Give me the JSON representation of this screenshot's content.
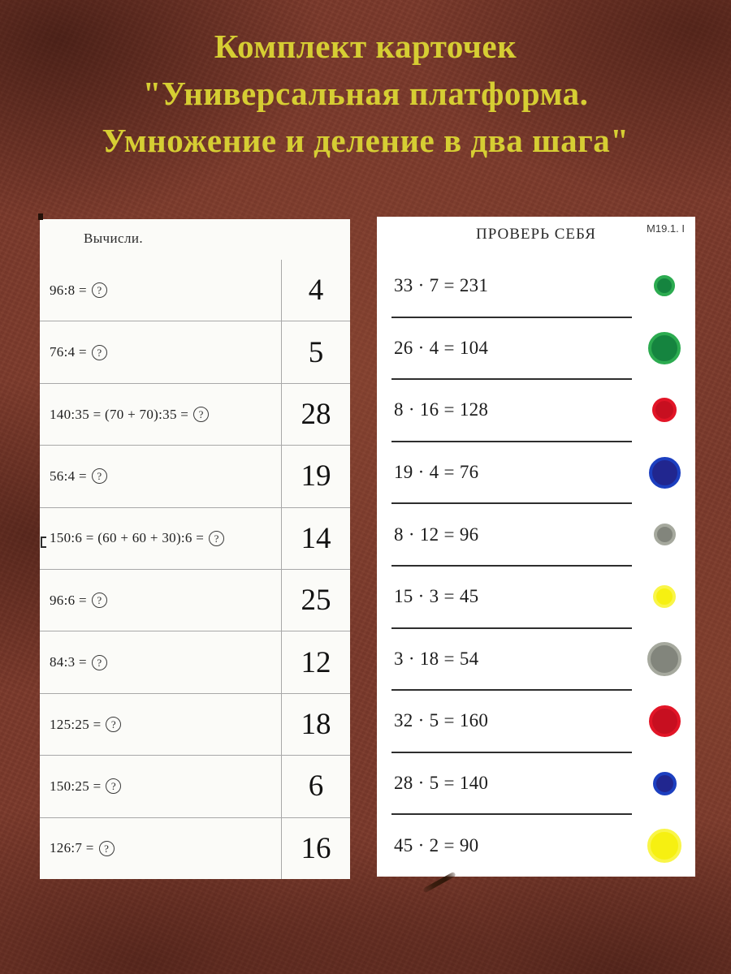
{
  "poster": {
    "title_lines": [
      "Комплект карточек",
      "\"Универсальная платформа.",
      "Умножение и деление в два шага\""
    ]
  },
  "left_card": {
    "header": "Вычисли.",
    "qmark": "?",
    "rows": [
      {
        "expr": "96:8 =",
        "answer": "4"
      },
      {
        "expr": "76:4 =",
        "answer": "5"
      },
      {
        "expr": "140:35 = (70 + 70):35 =",
        "answer": "28"
      },
      {
        "expr": "56:4 =",
        "answer": "19"
      },
      {
        "expr": "150:6 = (60 + 60 + 30):6 =",
        "answer": "14"
      },
      {
        "expr": "96:6 =",
        "answer": "25"
      },
      {
        "expr": "84:3 =",
        "answer": "12"
      },
      {
        "expr": "125:25 =",
        "answer": "18"
      },
      {
        "expr": "150:25 =",
        "answer": "6"
      },
      {
        "expr": "126:7 =",
        "answer": "16"
      }
    ]
  },
  "right_card": {
    "header": "ПРОВЕРЬ СЕБЯ",
    "code": "М19.1. I",
    "rows": [
      {
        "expr": "33 · 7 = 231",
        "dot_color": "green",
        "dot_size": 34
      },
      {
        "expr": "26 · 4 = 104",
        "dot_color": "green",
        "dot_size": 48
      },
      {
        "expr": "8 · 16 = 128",
        "dot_color": "red",
        "dot_size": 38
      },
      {
        "expr": "19 · 4 = 76",
        "dot_color": "blue",
        "dot_size": 47
      },
      {
        "expr": "8 · 12 = 96",
        "dot_color": "gray",
        "dot_size": 35
      },
      {
        "expr": "15 · 3 = 45",
        "dot_color": "yellow",
        "dot_size": 36
      },
      {
        "expr": "3 · 18 = 54",
        "dot_color": "gray",
        "dot_size": 50
      },
      {
        "expr": "32 · 5 = 160",
        "dot_color": "red",
        "dot_size": 47
      },
      {
        "expr": "28 · 5 = 140",
        "dot_color": "blue",
        "dot_size": 37
      },
      {
        "expr": "45 · 2 = 90",
        "dot_color": "yellow",
        "dot_size": 50
      }
    ]
  },
  "colors": {
    "background": "#7a392b",
    "title": "#d6ce33",
    "left_line": "#a8a8a8",
    "right_line": "#2e2e2e",
    "dot_palette": {
      "green": {
        "fill": "#15843f",
        "rim": "#2cab50"
      },
      "red": {
        "fill": "#c70f20",
        "rim": "#e21527"
      },
      "blue": {
        "fill": "#21268f",
        "rim": "#1c3fc0"
      },
      "gray": {
        "fill": "#82857c",
        "rim": "#a6a99e"
      },
      "yellow": {
        "fill": "#f6f011",
        "rim": "#f9f548"
      }
    }
  }
}
